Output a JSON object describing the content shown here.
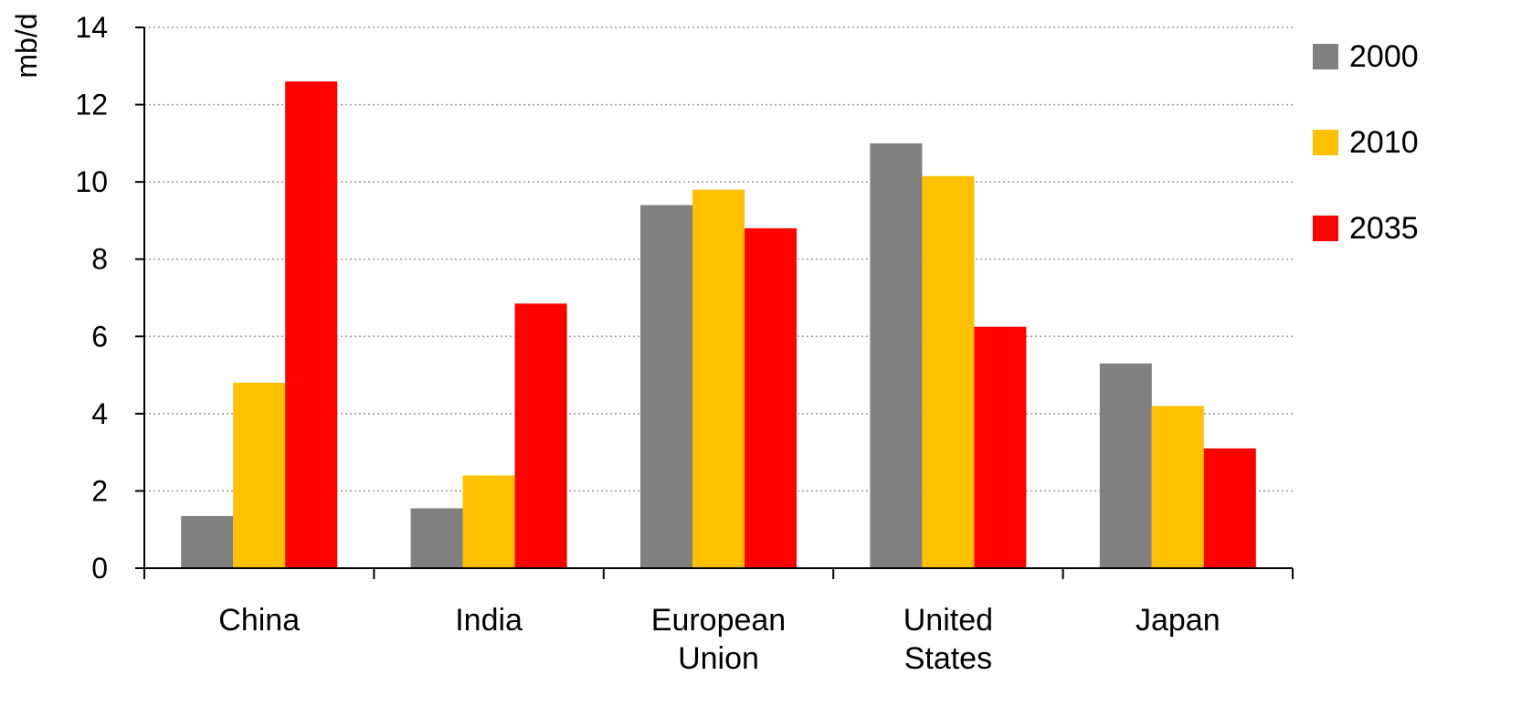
{
  "chart_data": {
    "type": "bar",
    "ylabel": "mb/d",
    "xlabel": "",
    "ylim": [
      0,
      14
    ],
    "yticks": [
      0,
      2,
      4,
      6,
      8,
      10,
      12,
      14
    ],
    "grid": "horizontal dotted",
    "legend_position": "right",
    "categories": [
      [
        "China"
      ],
      [
        "India"
      ],
      [
        "European",
        "Union"
      ],
      [
        "United",
        "States"
      ],
      [
        "Japan"
      ]
    ],
    "series": [
      {
        "name": "2000",
        "color": "#808080",
        "values": [
          1.35,
          1.55,
          9.4,
          11.0,
          5.3
        ]
      },
      {
        "name": "2010",
        "color": "#FFC000",
        "values": [
          4.8,
          2.4,
          9.8,
          10.15,
          4.2
        ]
      },
      {
        "name": "2035",
        "color": "#FF0000",
        "values": [
          12.6,
          6.85,
          8.8,
          6.25,
          3.1
        ]
      }
    ]
  }
}
